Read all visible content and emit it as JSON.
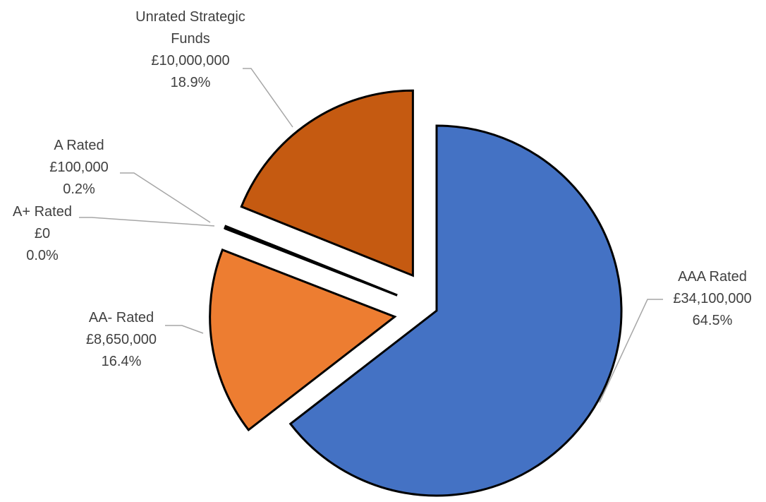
{
  "chart_data": {
    "type": "pie",
    "title": "",
    "currency": "£",
    "slices": [
      {
        "name": "AAA Rated",
        "value": 34100000,
        "value_label": "£34,100,000",
        "percent_label": "64.5%",
        "color": "#4472C4"
      },
      {
        "name": "AA- Rated",
        "value": 8650000,
        "value_label": "£8,650,000",
        "percent_label": "16.4%",
        "color": "#ED7D31"
      },
      {
        "name": "A+ Rated",
        "value": 0,
        "value_label": "£0",
        "percent_label": "0.0%",
        "color": "#2F2F2F"
      },
      {
        "name": "A Rated",
        "value": 100000,
        "value_label": "£100,000",
        "percent_label": "0.2%",
        "color": "#1F1F1F"
      },
      {
        "name": "Unrated Strategic Funds",
        "value": 10000000,
        "value_label": "£10,000,000",
        "percent_label": "18.9%",
        "color": "#C55A11"
      }
    ],
    "legend": "none",
    "data_labels": "outside-with-leader-lines",
    "exploded": true
  }
}
